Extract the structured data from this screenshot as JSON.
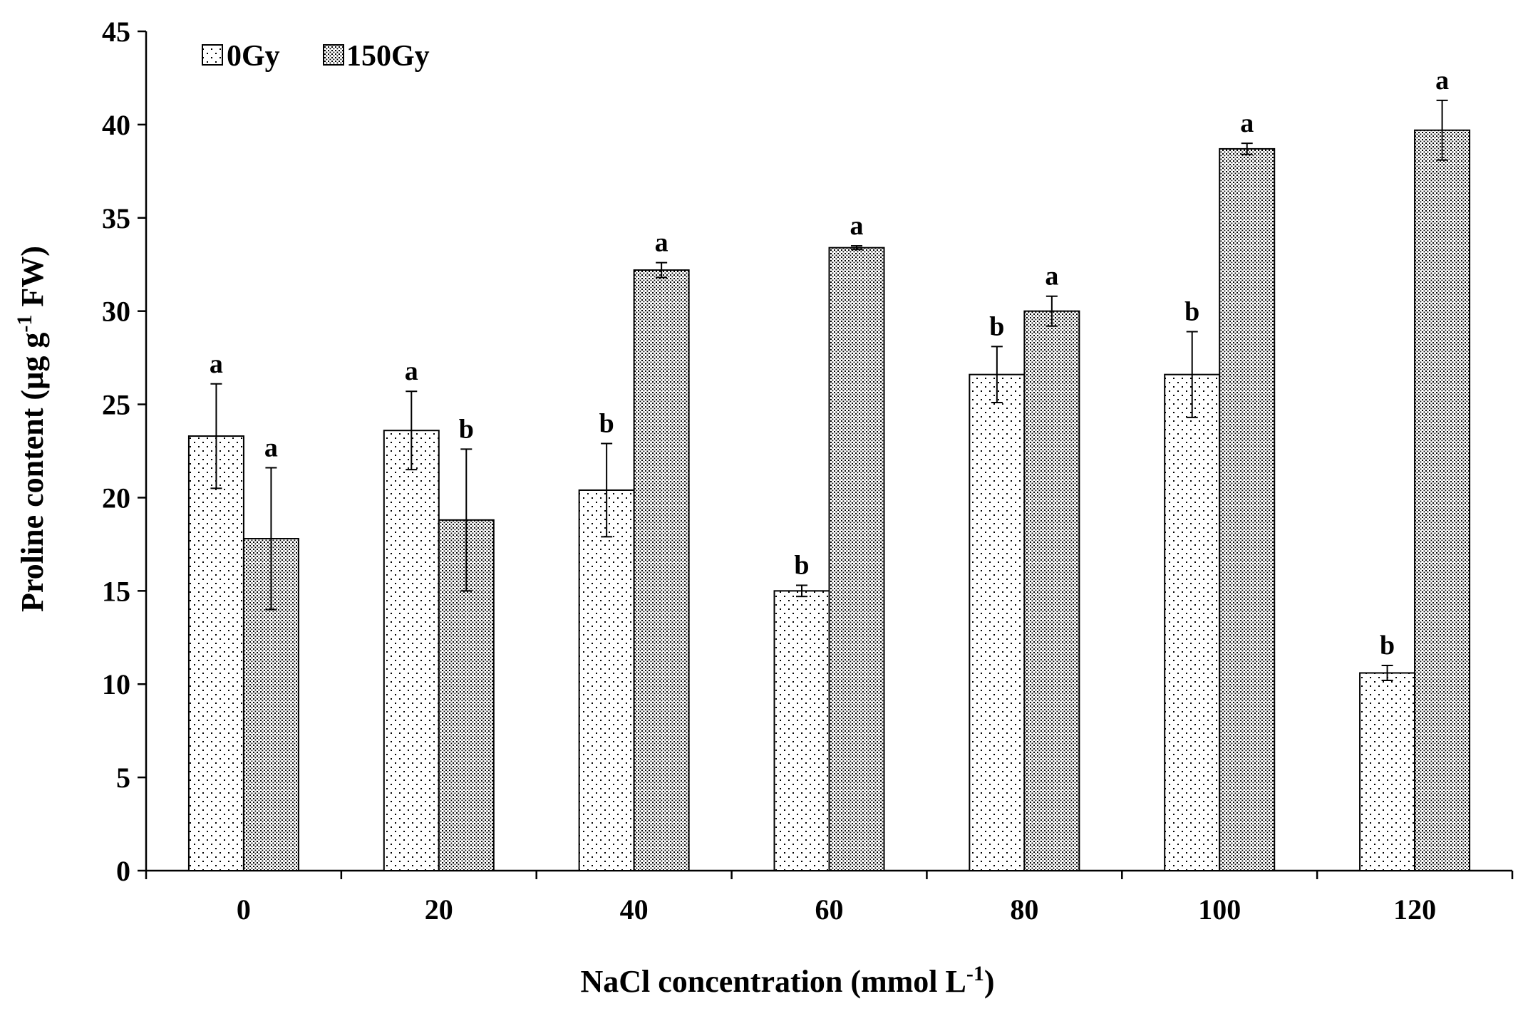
{
  "chart_data": {
    "type": "bar",
    "title": "",
    "xlabel": "NaCl concentration (mmol L",
    "xlabel_sup": "-1",
    "xlabel_close": ")",
    "ylabel": "Proline content (µg g",
    "ylabel_sup": "-1",
    "ylabel_tail": " FW)",
    "ylim": [
      0,
      45
    ],
    "yticks": [
      0,
      5,
      10,
      15,
      20,
      25,
      30,
      35,
      40,
      45
    ],
    "categories": [
      "0",
      "20",
      "40",
      "60",
      "80",
      "100",
      "120"
    ],
    "legend_position": "top-left",
    "series": [
      {
        "name": "0Gy",
        "pattern": "sparse-dots",
        "values": [
          23.3,
          23.6,
          20.4,
          15.0,
          26.6,
          26.6,
          10.6
        ],
        "errors": [
          2.8,
          2.1,
          2.5,
          0.3,
          1.5,
          2.3,
          0.4
        ],
        "sig": [
          "a",
          "a",
          "b",
          "b",
          "b",
          "b",
          "b"
        ]
      },
      {
        "name": "150Gy",
        "pattern": "dense-dots",
        "values": [
          17.8,
          18.8,
          32.2,
          33.4,
          30.0,
          38.7,
          39.7
        ],
        "errors": [
          3.8,
          3.8,
          0.4,
          0.1,
          0.8,
          0.3,
          1.6
        ],
        "sig": [
          "a",
          "b",
          "a",
          "a",
          "a",
          "a",
          "a"
        ]
      }
    ]
  }
}
